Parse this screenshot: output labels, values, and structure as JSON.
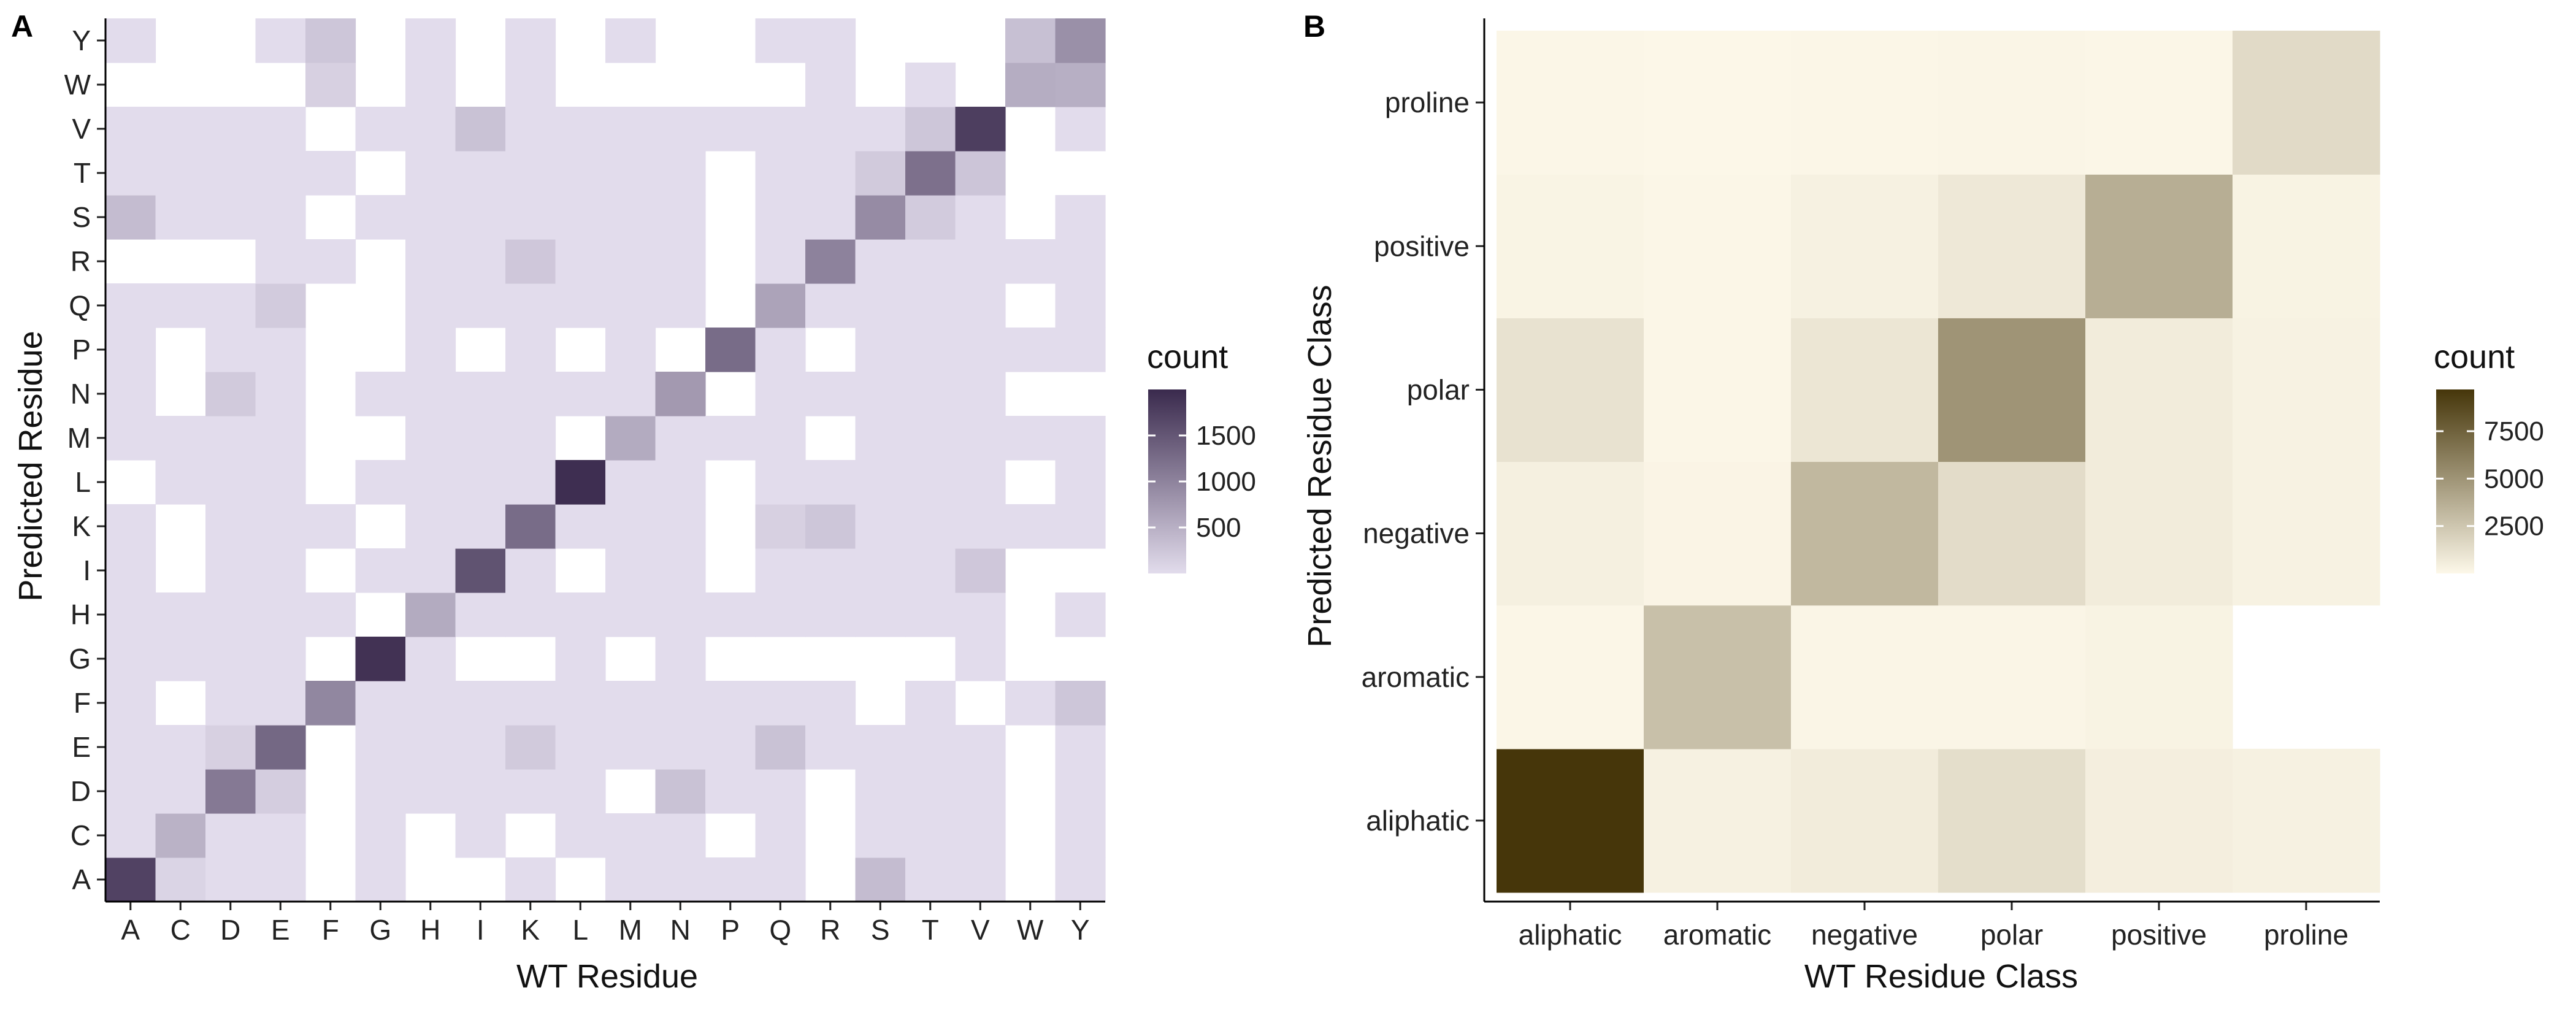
{
  "chart_data": [
    {
      "type": "heatmap",
      "panel_label": "A",
      "xlabel": "WT Residue",
      "ylabel": "Predicted Residue",
      "x": [
        "A",
        "C",
        "D",
        "E",
        "F",
        "G",
        "H",
        "I",
        "K",
        "L",
        "M",
        "N",
        "P",
        "Q",
        "R",
        "S",
        "T",
        "V",
        "W",
        "Y"
      ],
      "y": [
        "A",
        "C",
        "D",
        "E",
        "F",
        "G",
        "H",
        "I",
        "K",
        "L",
        "M",
        "N",
        "P",
        "Q",
        "R",
        "S",
        "T",
        "V",
        "W",
        "Y"
      ],
      "diagonal": [
        1700,
        450,
        1050,
        1250,
        900,
        1900,
        520,
        1500,
        1200,
        1950,
        520,
        700,
        1200,
        600,
        950,
        850,
        1150,
        1750,
        500,
        800
      ],
      "background_count": 80,
      "elevated_cells": [
        {
          "wt": "A",
          "pred": "S",
          "count": 350
        },
        {
          "wt": "S",
          "pred": "A",
          "count": 350
        },
        {
          "wt": "Y",
          "pred": "W",
          "count": 480
        },
        {
          "wt": "W",
          "pred": "Y",
          "count": 320
        },
        {
          "wt": "F",
          "pred": "Y",
          "count": 260
        },
        {
          "wt": "Y",
          "pred": "F",
          "count": 260
        },
        {
          "wt": "I",
          "pred": "V",
          "count": 300
        },
        {
          "wt": "V",
          "pred": "I",
          "count": 250
        },
        {
          "wt": "T",
          "pred": "V",
          "count": 260
        },
        {
          "wt": "V",
          "pred": "T",
          "count": 270
        },
        {
          "wt": "R",
          "pred": "K",
          "count": 260
        },
        {
          "wt": "K",
          "pred": "R",
          "count": 250
        },
        {
          "wt": "Q",
          "pred": "E",
          "count": 300
        },
        {
          "wt": "E",
          "pred": "Q",
          "count": 220
        },
        {
          "wt": "N",
          "pred": "D",
          "count": 300
        },
        {
          "wt": "D",
          "pred": "N",
          "count": 230
        },
        {
          "wt": "K",
          "pred": "E",
          "count": 230
        },
        {
          "wt": "S",
          "pred": "T",
          "count": 230
        },
        {
          "wt": "T",
          "pred": "S",
          "count": 220
        },
        {
          "wt": "C",
          "pred": "A",
          "count": 150
        },
        {
          "wt": "F",
          "pred": "W",
          "count": 180
        },
        {
          "wt": "Q",
          "pred": "K",
          "count": 180
        },
        {
          "wt": "E",
          "pred": "D",
          "count": 200
        },
        {
          "wt": "D",
          "pred": "E",
          "count": 180
        },
        {
          "wt": "W",
          "pred": "H",
          "count": 160
        }
      ],
      "empty_cells": [
        [
          "A",
          "W"
        ],
        [
          "A",
          "R"
        ],
        [
          "A",
          "L"
        ],
        [
          "A",
          "I"
        ],
        [
          "A",
          "H"
        ],
        [
          "A",
          "F"
        ],
        [
          "C",
          "W"
        ],
        [
          "C",
          "R"
        ],
        [
          "C",
          "P"
        ],
        [
          "C",
          "H"
        ],
        [
          "C",
          "F"
        ],
        [
          "C",
          "K"
        ],
        [
          "D",
          "W"
        ],
        [
          "D",
          "R"
        ],
        [
          "D",
          "M"
        ],
        [
          "D",
          "F"
        ],
        [
          "E",
          "W"
        ],
        [
          "E",
          "F"
        ],
        [
          "F",
          "V"
        ],
        [
          "F",
          "S"
        ],
        [
          "F",
          "C"
        ],
        [
          "G",
          "Y"
        ],
        [
          "G",
          "W"
        ],
        [
          "G",
          "T"
        ],
        [
          "G",
          "S"
        ],
        [
          "G",
          "R"
        ],
        [
          "G",
          "Q"
        ],
        [
          "G",
          "P"
        ],
        [
          "G",
          "M"
        ],
        [
          "G",
          "K"
        ],
        [
          "G",
          "I"
        ],
        [
          "G",
          "F"
        ],
        [
          "H",
          "W"
        ],
        [
          "H",
          "G"
        ],
        [
          "I",
          "W"
        ],
        [
          "I",
          "Y"
        ],
        [
          "I",
          "P"
        ],
        [
          "I",
          "L"
        ],
        [
          "I",
          "F"
        ],
        [
          "I",
          "C"
        ],
        [
          "K",
          "C"
        ],
        [
          "K",
          "P"
        ],
        [
          "K",
          "G"
        ],
        [
          "L",
          "A"
        ],
        [
          "L",
          "P"
        ],
        [
          "L",
          "F"
        ],
        [
          "L",
          "W"
        ],
        [
          "M",
          "R"
        ],
        [
          "M",
          "L"
        ],
        [
          "M",
          "F"
        ],
        [
          "M",
          "G"
        ],
        [
          "N",
          "P"
        ],
        [
          "N",
          "F"
        ],
        [
          "N",
          "W"
        ],
        [
          "N",
          "Y"
        ],
        [
          "N",
          "C"
        ],
        [
          "P",
          "C"
        ],
        [
          "P",
          "L"
        ],
        [
          "P",
          "N"
        ],
        [
          "P",
          "R"
        ],
        [
          "P",
          "I"
        ],
        [
          "P",
          "F"
        ],
        [
          "P",
          "G"
        ],
        [
          "Q",
          "P"
        ],
        [
          "Q",
          "W"
        ],
        [
          "Q",
          "F"
        ],
        [
          "Q",
          "G"
        ],
        [
          "R",
          "A"
        ],
        [
          "R",
          "C"
        ],
        [
          "R",
          "D"
        ],
        [
          "R",
          "G"
        ],
        [
          "R",
          "P"
        ],
        [
          "S",
          "F"
        ],
        [
          "S",
          "P"
        ],
        [
          "S",
          "W"
        ],
        [
          "T",
          "W"
        ],
        [
          "T",
          "Y"
        ],
        [
          "T",
          "G"
        ],
        [
          "T",
          "P"
        ],
        [
          "V",
          "F"
        ],
        [
          "V",
          "W"
        ],
        [
          "W",
          "A"
        ],
        [
          "W",
          "C"
        ],
        [
          "W",
          "D"
        ],
        [
          "W",
          "E"
        ],
        [
          "W",
          "G"
        ],
        [
          "W",
          "I"
        ],
        [
          "W",
          "L"
        ],
        [
          "W",
          "N"
        ],
        [
          "W",
          "P"
        ],
        [
          "W",
          "Q"
        ],
        [
          "W",
          "S"
        ],
        [
          "W",
          "V"
        ],
        [
          "W",
          "M"
        ],
        [
          "Y",
          "C"
        ],
        [
          "Y",
          "D"
        ],
        [
          "Y",
          "G"
        ],
        [
          "Y",
          "I"
        ],
        [
          "Y",
          "L"
        ],
        [
          "Y",
          "N"
        ],
        [
          "Y",
          "P"
        ],
        [
          "Y",
          "S"
        ],
        [
          "Y",
          "T"
        ],
        [
          "Y",
          "V"
        ]
      ],
      "legend": {
        "title": "count",
        "ticks": [
          500,
          1000,
          1500
        ],
        "tick_labels": [
          "500",
          "1000",
          "1500"
        ],
        "range": [
          0,
          2000
        ]
      },
      "colors": {
        "low": "#e2dcec",
        "high": "#3a2a4d"
      }
    },
    {
      "type": "heatmap",
      "panel_label": "B",
      "xlabel": "WT Residue Class",
      "ylabel": "Predicted Residue Class",
      "x": [
        "aliphatic",
        "aromatic",
        "negative",
        "polar",
        "positive",
        "proline"
      ],
      "y": [
        "aliphatic",
        "aromatic",
        "negative",
        "polar",
        "positive",
        "proline"
      ],
      "z": [
        [
          9700,
          350,
          600,
          1300,
          500,
          350
        ],
        [
          100,
          2800,
          150,
          150,
          250,
          null
        ],
        [
          400,
          180,
          3200,
          1400,
          600,
          300
        ],
        [
          1100,
          100,
          900,
          5000,
          600,
          300
        ],
        [
          200,
          100,
          350,
          800,
          3700,
          250
        ],
        [
          100,
          50,
          100,
          150,
          100,
          1500
        ]
      ],
      "z_orientation": "rows are Predicted Residue Class (bottom to top), columns are WT Residue Class",
      "legend": {
        "title": "count",
        "ticks": [
          2500,
          5000,
          7500
        ],
        "tick_labels": [
          "2500",
          "5000",
          "7500"
        ],
        "range": [
          0,
          9700
        ]
      },
      "colors": {
        "low": "#fdf8e9",
        "high": "#46360a"
      }
    }
  ]
}
